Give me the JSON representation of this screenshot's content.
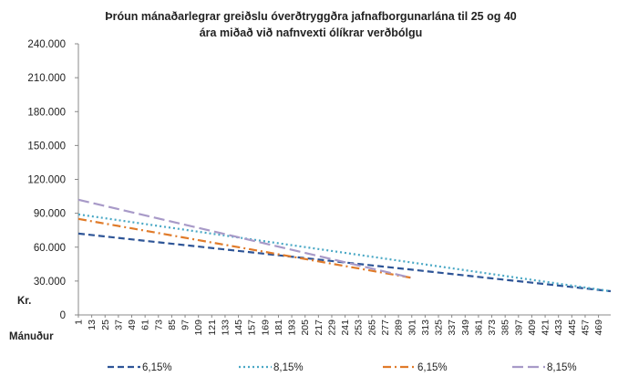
{
  "chart_data": {
    "type": "line",
    "title": "Þróun mánaðarlegrar greiðslu óverðtryggðra jafnafborgunarlána til 25 og 40",
    "subtitle": "ára miðað við nafnvexti ólíkrar  verðbólgu",
    "xlabel": "Mánuður",
    "ylabel": "Kr.",
    "ylim": [
      0,
      240000
    ],
    "yticks": [
      "0",
      "30.000",
      "60.000",
      "90.000",
      "120.000",
      "150.000",
      "180.000",
      "210.000",
      "240.000"
    ],
    "ytick_values": [
      0,
      30000,
      60000,
      90000,
      120000,
      150000,
      180000,
      210000,
      240000
    ],
    "xticks": [
      "1",
      "13",
      "25",
      "37",
      "49",
      "61",
      "73",
      "85",
      "97",
      "109",
      "121",
      "133",
      "145",
      "157",
      "169",
      "181",
      "193",
      "205",
      "217",
      "229",
      "241",
      "253",
      "265",
      "277",
      "289",
      "301",
      "313",
      "325",
      "337",
      "349",
      "361",
      "373",
      "385",
      "397",
      "409",
      "421",
      "433",
      "445",
      "457",
      "469"
    ],
    "xlim": [
      1,
      480
    ],
    "grid": false,
    "legend_position": "bottom",
    "series": [
      {
        "name": "6,15%",
        "color": "#2e5597",
        "dash": "dashed",
        "x": [
          1,
          480
        ],
        "values": [
          72000,
          21000
        ]
      },
      {
        "name": "8,15%",
        "color": "#4aa8c5",
        "dash": "dotted",
        "x": [
          1,
          480
        ],
        "values": [
          89000,
          21000
        ]
      },
      {
        "name": "6,15%",
        "color": "#e07b2a",
        "dash": "dashdot",
        "x": [
          1,
          300
        ],
        "values": [
          85000,
          33000
        ]
      },
      {
        "name": "8,15%",
        "color": "#a89ac8",
        "dash": "longdash",
        "x": [
          1,
          300
        ],
        "values": [
          102000,
          33000
        ]
      }
    ]
  }
}
